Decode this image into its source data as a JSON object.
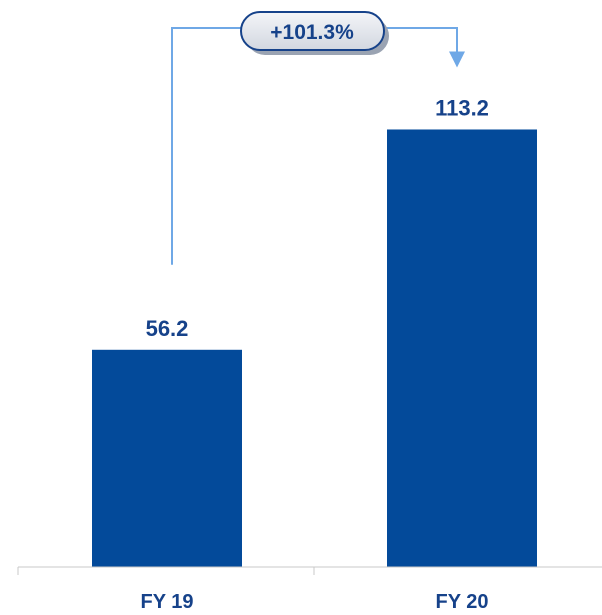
{
  "colors": {
    "bar": "#034a9a",
    "text": "#16428a",
    "connector": "#6fa8e6",
    "badge_fill": "#e6e9ef",
    "badge_border": "#16428a",
    "axis": "#c8c8c8"
  },
  "chart_data": {
    "type": "bar",
    "categories": [
      "FY 19",
      "FY 20"
    ],
    "values": [
      56.2,
      113.2
    ],
    "value_labels": [
      "56.2",
      "113.2"
    ],
    "growth_label": "+101.3%",
    "title": "",
    "xlabel": "",
    "ylabel": "",
    "ylim": [
      0,
      125
    ],
    "grid": false,
    "legend": "none"
  }
}
